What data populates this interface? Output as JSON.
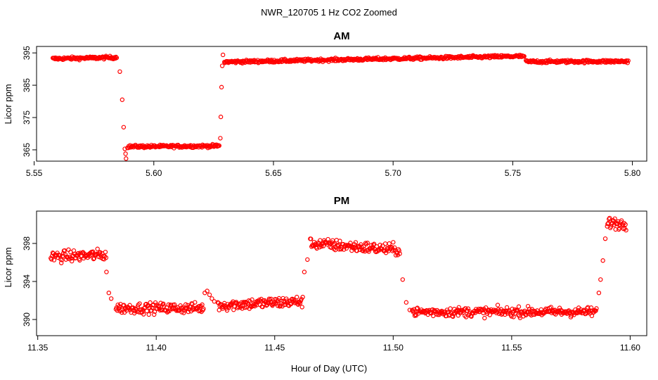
{
  "figure": {
    "title": "NWR_120705  1 Hz CO2 Zoomed",
    "xlabel": "Hour of Day (UTC)",
    "marker_color": "#ff0000"
  },
  "chart_data": [
    {
      "type": "scatter",
      "title": "AM",
      "ylabel": "Licor ppm",
      "xlim": [
        5.551,
        5.806
      ],
      "ylim": [
        361.5,
        397.0
      ],
      "xticks": [
        5.55,
        5.6,
        5.65,
        5.7,
        5.75,
        5.8
      ],
      "xtick_labels": [
        "5.55",
        "5.60",
        "5.65",
        "5.70",
        "5.75",
        "5.80"
      ],
      "yticks": [
        365,
        375,
        385,
        395
      ],
      "ytick_labels": [
        "365",
        "375",
        "385",
        "395"
      ],
      "segments": [
        {
          "x0": 5.5578,
          "x1": 5.5845,
          "y0": 393.2,
          "y1": 393.6,
          "noise": 0.45
        },
        {
          "x0": 5.5848,
          "x1": 5.588,
          "points": [
            [
              5.5858,
              389.2
            ],
            [
              5.5868,
              380.5
            ],
            [
              5.5874,
              372.0
            ],
            [
              5.5879,
              365.3
            ],
            [
              5.5882,
              363.8
            ],
            [
              5.5884,
              362.3
            ]
          ]
        },
        {
          "x0": 5.589,
          "x1": 5.6275,
          "y0": 366.0,
          "y1": 366.2,
          "noise": 0.45
        },
        {
          "x0": 5.6278,
          "x1": 5.629,
          "points": [
            [
              5.6278,
              368.6
            ],
            [
              5.628,
              375.2
            ],
            [
              5.6283,
              384.4
            ],
            [
              5.6286,
              391.0
            ],
            [
              5.6289,
              394.4
            ]
          ]
        },
        {
          "x0": 5.6295,
          "x1": 5.755,
          "y0": 392.2,
          "y1": 394.0,
          "noise": 0.45
        },
        {
          "x0": 5.7555,
          "x1": 5.7985,
          "y0": 392.3,
          "y1": 392.4,
          "noise": 0.45
        }
      ]
    },
    {
      "type": "scatter",
      "title": "PM",
      "ylabel": "Licor ppm",
      "xlim": [
        11.3495,
        11.607
      ],
      "ylim": [
        388.3,
        401.4
      ],
      "xticks": [
        11.35,
        11.4,
        11.45,
        11.5,
        11.55,
        11.6
      ],
      "xtick_labels": [
        "11.35",
        "11.40",
        "11.45",
        "11.50",
        "11.55",
        "11.60"
      ],
      "yticks": [
        390,
        394,
        398
      ],
      "ytick_labels": [
        "390",
        "394",
        "398"
      ],
      "segments": [
        {
          "x0": 11.3555,
          "x1": 11.379,
          "y0": 396.6,
          "y1": 396.8,
          "noise": 0.6
        },
        {
          "x0": 11.379,
          "x1": 11.383,
          "points": [
            [
              11.379,
              395.0
            ],
            [
              11.38,
              392.8
            ],
            [
              11.381,
              392.2
            ]
          ]
        },
        {
          "x0": 11.383,
          "x1": 11.42,
          "y0": 391.2,
          "y1": 391.2,
          "noise": 0.55
        },
        {
          "x0": 11.42,
          "x1": 11.426,
          "points": [
            [
              11.4205,
              392.8
            ],
            [
              11.4215,
              393.0
            ],
            [
              11.4225,
              392.6
            ],
            [
              11.4235,
              392.2
            ],
            [
              11.4245,
              391.9
            ]
          ]
        },
        {
          "x0": 11.426,
          "x1": 11.462,
          "y0": 391.5,
          "y1": 391.9,
          "noise": 0.6
        },
        {
          "x0": 11.462,
          "x1": 11.465,
          "points": [
            [
              11.4625,
              395.0
            ],
            [
              11.4638,
              396.3
            ]
          ]
        },
        {
          "x0": 11.465,
          "x1": 11.503,
          "y0": 398.0,
          "y1": 397.3,
          "noise": 0.6
        },
        {
          "x0": 11.503,
          "x1": 11.508,
          "points": [
            [
              11.504,
              394.2
            ],
            [
              11.5055,
              391.8
            ],
            [
              11.507,
              391.0
            ]
          ]
        },
        {
          "x0": 11.508,
          "x1": 11.586,
          "y0": 390.8,
          "y1": 390.8,
          "noise": 0.5
        },
        {
          "x0": 11.586,
          "x1": 11.5905,
          "points": [
            [
              11.5868,
              392.8
            ],
            [
              11.5875,
              394.2
            ],
            [
              11.5885,
              396.2
            ],
            [
              11.5895,
              398.5
            ],
            [
              11.5903,
              399.8
            ]
          ]
        },
        {
          "x0": 11.5905,
          "x1": 11.5985,
          "y0": 400.2,
          "y1": 400.0,
          "noise": 0.6
        }
      ]
    }
  ]
}
